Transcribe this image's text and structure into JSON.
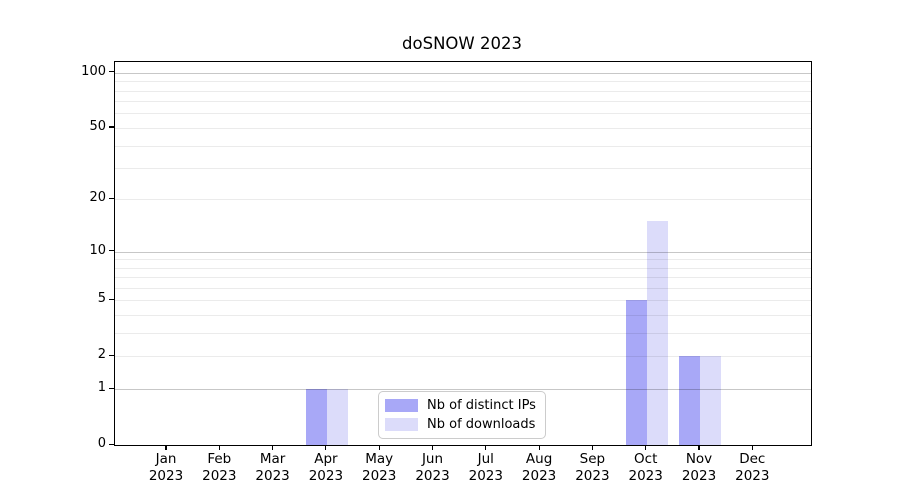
{
  "chart_data": {
    "type": "bar",
    "title": "doSNOW 2023",
    "categories": [
      "Jan 2023",
      "Feb 2023",
      "Mar 2023",
      "Apr 2023",
      "May 2023",
      "Jun 2023",
      "Jul 2023",
      "Aug 2023",
      "Sep 2023",
      "Oct 2023",
      "Nov 2023",
      "Dec 2023"
    ],
    "series": [
      {
        "name": "Nb of distinct IPs",
        "color": "#a8a8f7",
        "values": [
          0,
          0,
          0,
          1,
          0,
          0,
          0,
          0,
          0,
          5,
          2,
          0
        ]
      },
      {
        "name": "Nb of downloads",
        "color": "#dcdcfa",
        "values": [
          0,
          0,
          0,
          1,
          0,
          0,
          0,
          0,
          0,
          15,
          2,
          0
        ]
      }
    ],
    "yscale": "log1p",
    "yticks": [
      0,
      1,
      2,
      5,
      10,
      20,
      50,
      100
    ],
    "ylim": [
      0,
      110
    ],
    "xlabel": "",
    "ylabel": "",
    "grid": "horizontal",
    "major_gridline_values": [
      1,
      10,
      100
    ],
    "legend_position": "inside-bottom-center",
    "colors": {
      "grid_minor": "rgba(0,0,0,0.08)",
      "grid_major": "rgba(0,0,0,0.22)",
      "axis": "#000000",
      "background": "#ffffff",
      "legend_border": "#cccccc",
      "bar_distinct_ips": "#a8a8f7",
      "bar_downloads": "#dcdcfa"
    }
  }
}
